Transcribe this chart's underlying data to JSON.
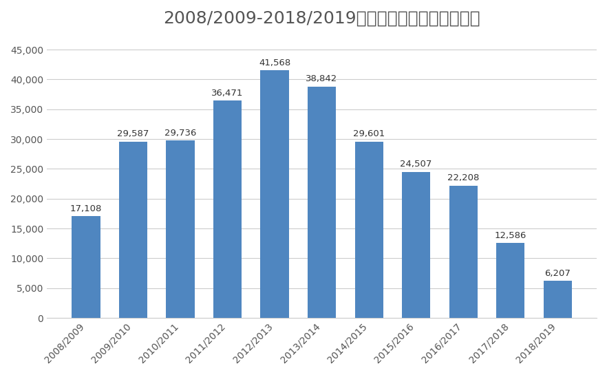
{
  "title": "2008/2009-2018/2019在美中国留学生年增长人数",
  "categories": [
    "2008/2009",
    "2009/2010",
    "2010/2011",
    "2011/2012",
    "2012/2013",
    "2013/2014",
    "2014/2015",
    "2015/2016",
    "2016/2017",
    "2017/2018",
    "2018/2019"
  ],
  "values": [
    17108,
    29587,
    29736,
    36471,
    41568,
    38842,
    29601,
    24507,
    22208,
    12586,
    6207
  ],
  "bar_color": "#4f86c0",
  "background_color": "#ffffff",
  "ylim": [
    0,
    47000
  ],
  "yticks": [
    0,
    5000,
    10000,
    15000,
    20000,
    25000,
    30000,
    35000,
    40000,
    45000
  ],
  "title_fontsize": 18,
  "tick_fontsize": 10,
  "value_label_fontsize": 9.5,
  "title_color": "#555555",
  "tick_color": "#555555",
  "value_color": "#333333",
  "grid_color": "#cccccc",
  "bar_width": 0.6
}
